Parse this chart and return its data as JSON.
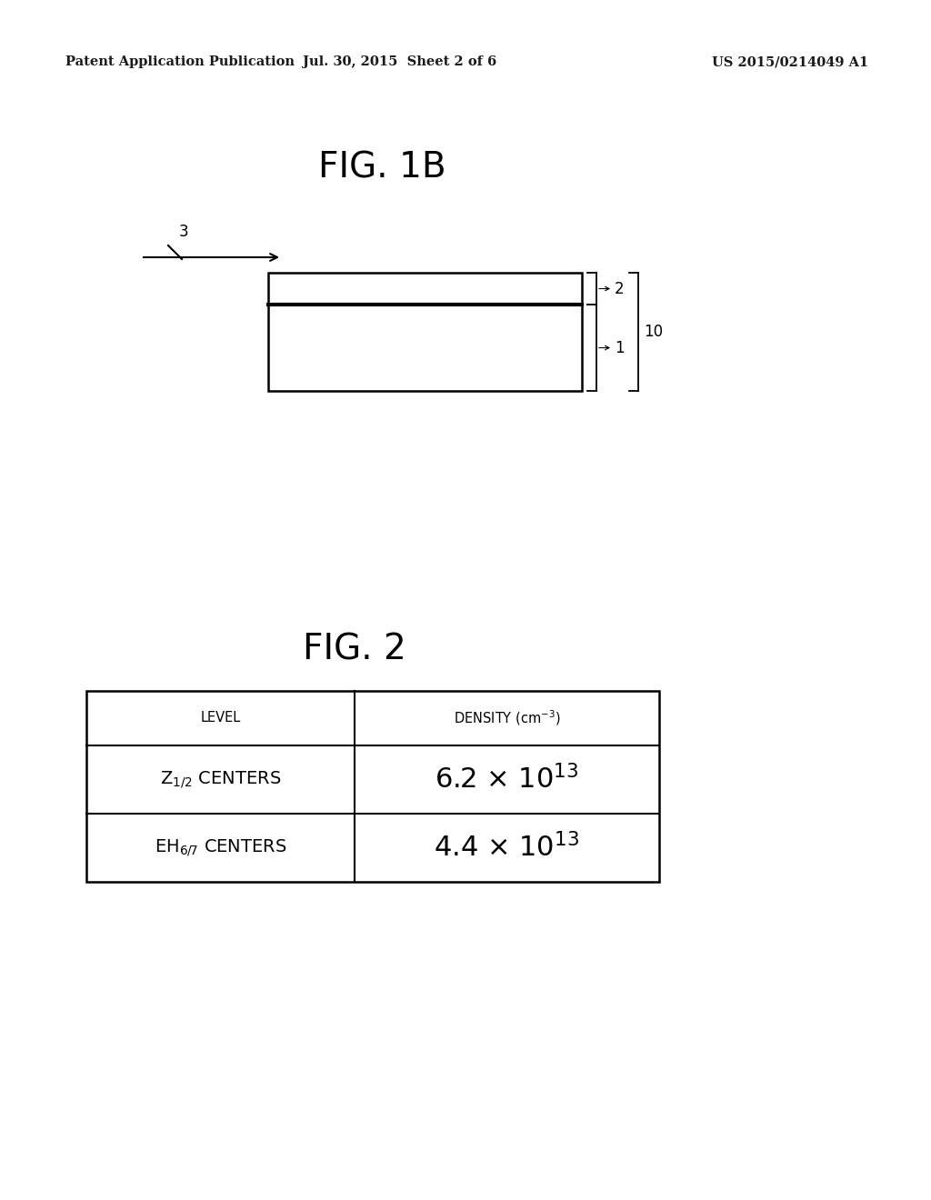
{
  "bg_color": "#ffffff",
  "header_left": "Patent Application Publication",
  "header_mid": "Jul. 30, 2015  Sheet 2 of 6",
  "header_right": "US 2015/0214049 A1",
  "fig1b_title": "FIG. 1B",
  "fig2_title": "FIG. 2",
  "arrow_label": "3",
  "layer2_label": "2",
  "layer1_label": "1",
  "stack_label": "10",
  "table_col1_header": "LEVEL",
  "table_col2_header": "DENSITY (cm",
  "table_col2_header_sup": "-3",
  "table_col2_header_end": ")",
  "table_row1_col1": "Z",
  "table_row1_col1_sub": "1/2",
  "table_row1_col1_rest": " CENTERS",
  "table_row1_col2_base": "6.2 × 10",
  "table_row1_col2_exp": "13",
  "table_row2_col1": "EH",
  "table_row2_col1_sub": "6/7",
  "table_row2_col1_rest": " CENTERS",
  "table_row2_col2_base": "4.4 × 10",
  "table_row2_col2_exp": "13",
  "header_fontsize": 10.5,
  "fig_title_fontsize": 28,
  "table_header_fontsize": 10.5,
  "table_body_small_fontsize": 14,
  "table_body_large_fontsize": 22,
  "label_fontsize": 12
}
